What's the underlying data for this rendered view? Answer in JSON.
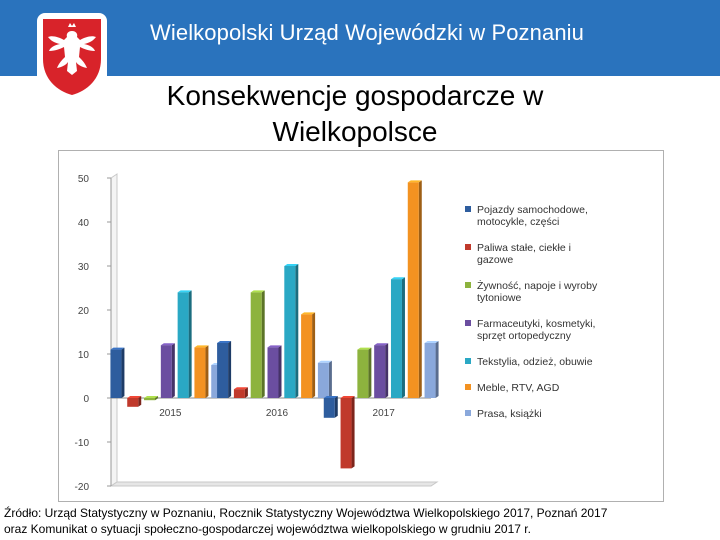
{
  "header": {
    "title": "Wielkopolski Urząd Wojewódzki w Poznaniu",
    "emblem": "polish-eagle-emblem",
    "background_color": "#2a73bd"
  },
  "slide": {
    "title_line1": "Konsekwencje gospodarcze w",
    "title_line2": "Wielkopolsce"
  },
  "chart_data": {
    "type": "bar",
    "title": "",
    "xlabel": "",
    "ylabel": "",
    "categories": [
      "2015",
      "2016",
      "2017"
    ],
    "ylim": [
      -20,
      50
    ],
    "yticks": [
      50,
      40,
      30,
      20,
      10,
      0,
      -10,
      -20
    ],
    "legend_position": "right",
    "grid": false,
    "series": [
      {
        "name": "Pojazdy samochodowe, motocykle, części",
        "color": "#2e5d9e",
        "values": [
          11,
          12.5,
          -4.5
        ]
      },
      {
        "name": "Paliwa stałe, ciekłe i gazowe",
        "color": "#c0392b",
        "values": [
          -2,
          2,
          -16
        ]
      },
      {
        "name": "Żywność, napoje i wyroby tytoniowe",
        "color": "#8db33e",
        "values": [
          -0.5,
          24,
          11
        ]
      },
      {
        "name": "Farmaceutyki, kosmetyki, sprzęt ortopedyczny",
        "color": "#6b4ea0",
        "values": [
          12,
          11.5,
          12
        ]
      },
      {
        "name": "Tekstylia, odzież, obuwie",
        "color": "#2aa8c4",
        "values": [
          24,
          30,
          27
        ]
      },
      {
        "name": "Meble, RTV, AGD",
        "color": "#f39221",
        "values": [
          11.5,
          19,
          49
        ]
      },
      {
        "name": "Prasa, książki",
        "color": "#8aa8db",
        "values": [
          7.5,
          8,
          12.5
        ]
      }
    ]
  },
  "source": {
    "line1": "Źródło: Urząd Statystyczny w Poznaniu, Rocznik Statystyczny Województwa Wielkopolskiego 2017, Poznań 2017",
    "line2": "oraz Komunikat o sytuacji społeczno-gospodarczej województwa wielkopolskiego w grudniu 2017 r."
  }
}
